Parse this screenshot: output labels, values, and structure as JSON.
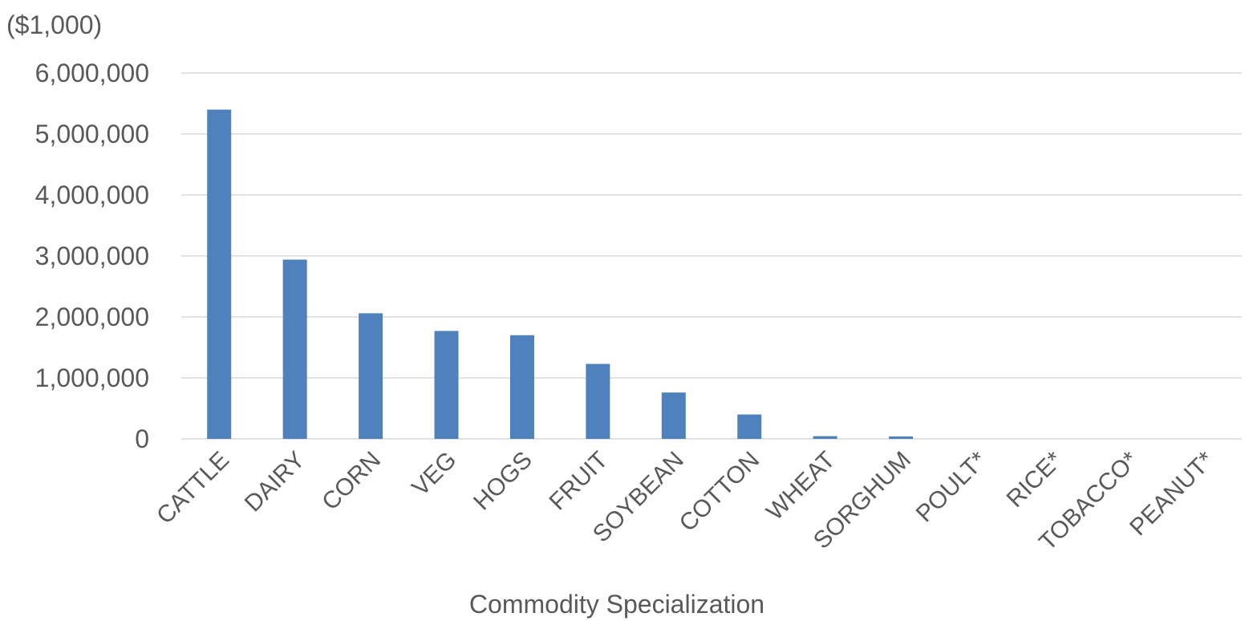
{
  "chart_data": {
    "type": "bar",
    "unit_label": "($1,000)",
    "xlabel": "Commodity Specialization",
    "ylabel": "",
    "categories": [
      "CATTLE",
      "DAIRY",
      "CORN",
      "VEG",
      "HOGS",
      "FRUIT",
      "SOYBEAN",
      "COTTON",
      "WHEAT",
      "SORGHUM",
      "POULT*",
      "RICE*",
      "TOBACCO*",
      "PEANUT*"
    ],
    "values": [
      5400000,
      2940000,
      2060000,
      1770000,
      1700000,
      1230000,
      760000,
      400000,
      45000,
      40000,
      0,
      0,
      0,
      0
    ],
    "ylim": [
      0,
      6000000
    ],
    "yticks": [
      0,
      1000000,
      2000000,
      3000000,
      4000000,
      5000000,
      6000000
    ],
    "ytick_labels": [
      "0",
      "1,000,000",
      "2,000,000",
      "3,000,000",
      "4,000,000",
      "5,000,000",
      "6,000,000"
    ],
    "grid": true,
    "bar_color": "#4F81BD",
    "grid_color": "#D9D9D9"
  }
}
